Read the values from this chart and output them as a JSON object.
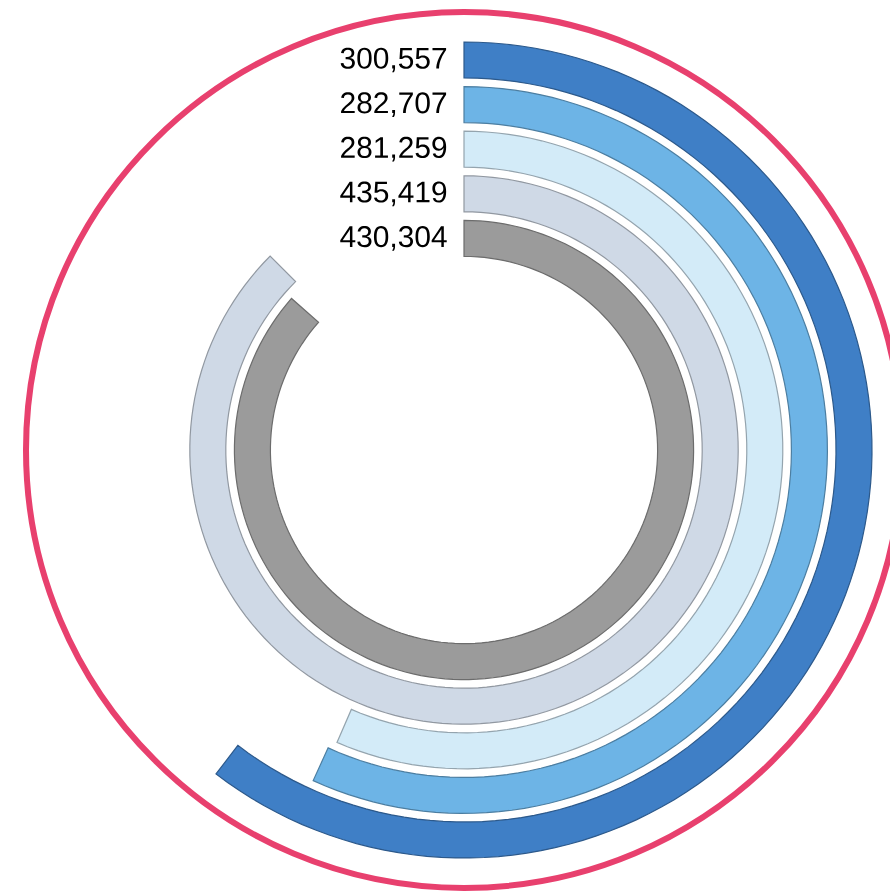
{
  "chart_data": {
    "type": "other",
    "values": [
      300557,
      282707,
      281259,
      435419,
      430304
    ],
    "value_labels": [
      "300,557",
      "282,707",
      "281,259",
      "435,419",
      "430,304"
    ],
    "colors": [
      "#3f7fc6",
      "#6db4e6",
      "#d3ebf8",
      "#cfd9e6",
      "#9b9b9b"
    ]
  }
}
